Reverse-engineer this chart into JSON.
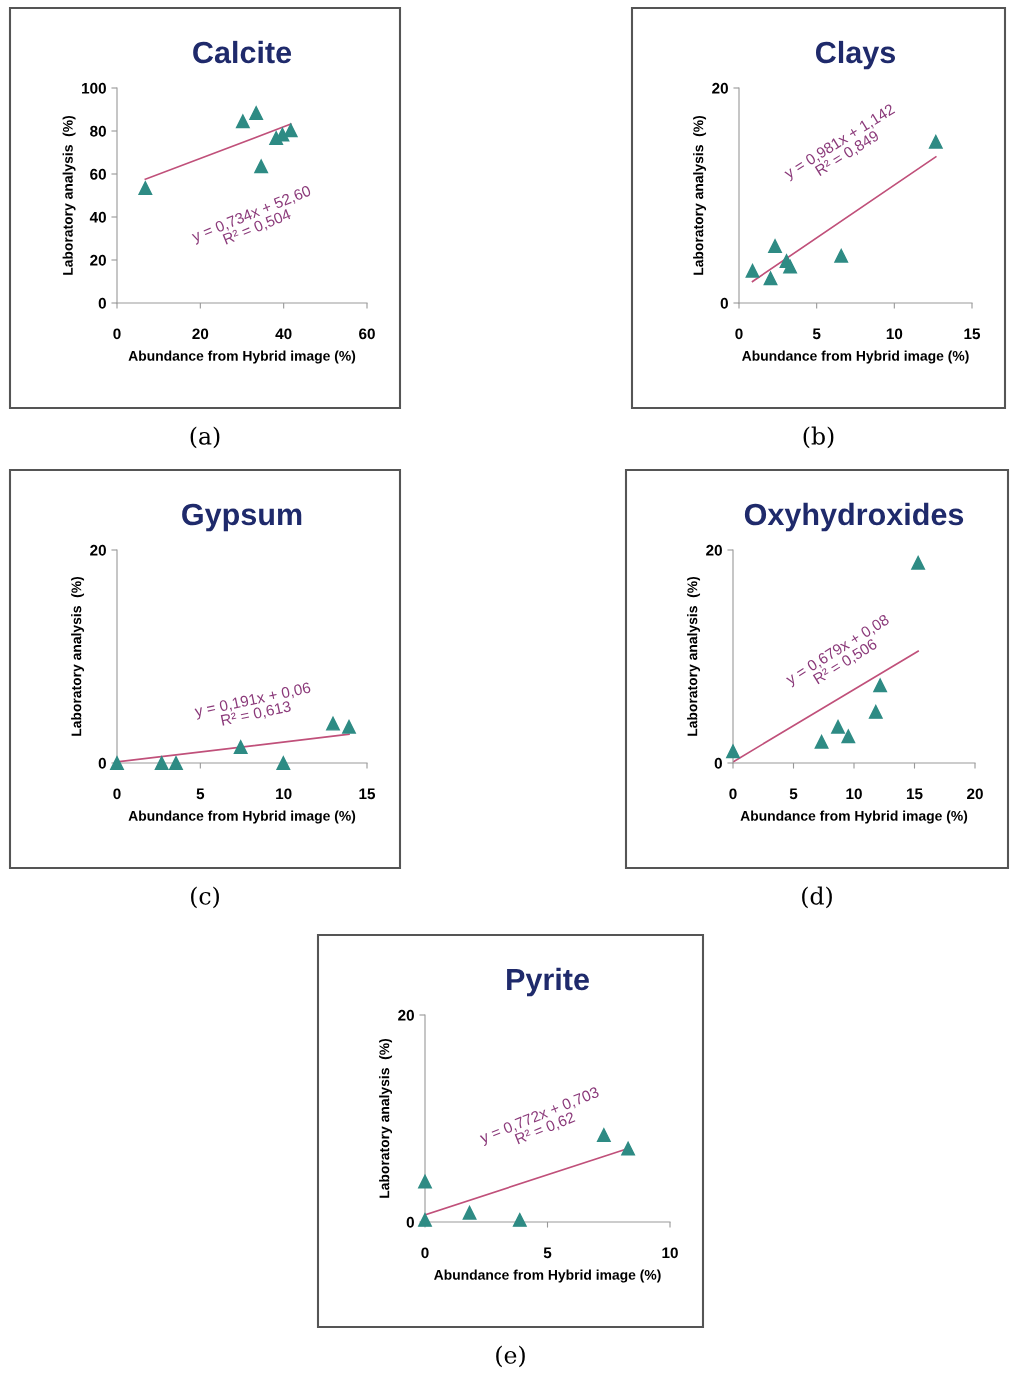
{
  "chart_data": [
    {
      "type": "scatter",
      "title": "Calcite",
      "xlabel": "Abundance from Hybrid image (%)",
      "ylabel": "Laboratory analysis  (%)",
      "xlim": [
        0,
        60
      ],
      "xticks": [
        0,
        20,
        40,
        60
      ],
      "ylim": [
        0,
        100
      ],
      "yticks": [
        0,
        20,
        40,
        60,
        80,
        100
      ],
      "grid": false,
      "series": [
        {
          "marker": "triangle",
          "color": "#2e8b84",
          "x": [
            6.8,
            30.2,
            33.4,
            34.6,
            38.2,
            39.7,
            41.7
          ],
          "values": [
            53.5,
            84.5,
            88.4,
            63.6,
            76.7,
            78.3,
            80.3
          ]
        },
        {
          "type": "line",
          "color": "#c0507a",
          "x": [
            6.8,
            41.7
          ],
          "values": [
            57.6,
            83.2
          ]
        }
      ],
      "annotations": [
        "y = 0,734x + 52,60",
        "R² = 0,504",
        "(a)"
      ]
    },
    {
      "type": "scatter",
      "title": "Clays",
      "xlabel": "Abundance from Hybrid image (%)",
      "ylabel": "Laboratory analysis  (%)",
      "xlim": [
        0,
        15
      ],
      "xticks": [
        0,
        5,
        10,
        15
      ],
      "ylim": [
        0,
        20
      ],
      "yticks": [
        0,
        20
      ],
      "grid": false,
      "series": [
        {
          "marker": "triangle",
          "color": "#2e8b84",
          "x": [
            0.87,
            2.03,
            2.32,
            3.06,
            3.29,
            6.58,
            12.67
          ],
          "values": [
            3.0,
            2.3,
            5.3,
            3.9,
            3.4,
            4.4,
            15.0
          ]
        },
        {
          "type": "line",
          "color": "#c0507a",
          "x": [
            0.87,
            12.67
          ],
          "values": [
            2.0,
            13.6
          ]
        }
      ],
      "annotations": [
        "y = 0,981x + 1,142",
        "R² = 0,849",
        "(b)"
      ]
    },
    {
      "type": "scatter",
      "title": "Gypsum",
      "xlabel": "Abundance from Hybrid image (%)",
      "ylabel": "Laboratory analysis  (%)",
      "xlim": [
        0,
        15
      ],
      "xticks": [
        0,
        5,
        10,
        15
      ],
      "ylim": [
        0,
        20
      ],
      "yticks": [
        0,
        20
      ],
      "grid": false,
      "series": [
        {
          "marker": "triangle",
          "color": "#2e8b84",
          "x": [
            0,
            2.68,
            3.54,
            7.42,
            9.98,
            12.96,
            13.92
          ],
          "values": [
            0,
            0,
            0,
            1.5,
            0,
            3.7,
            3.4
          ]
        },
        {
          "type": "line",
          "color": "#c0507a",
          "x": [
            0,
            13.92
          ],
          "values": [
            0.1,
            2.7
          ]
        }
      ],
      "annotations": [
        "y = 0,191x + 0,06",
        "R² = 0,613",
        "(c)"
      ]
    },
    {
      "type": "scatter",
      "title": "Oxyhydroxides",
      "xlabel": "Abundance from Hybrid image (%)",
      "ylabel": "Laboratory analysis  (%)",
      "xlim": [
        0,
        20
      ],
      "xticks": [
        0,
        5,
        10,
        15,
        20
      ],
      "ylim": [
        0,
        20
      ],
      "yticks": [
        0,
        20
      ],
      "grid": false,
      "series": [
        {
          "marker": "triangle",
          "color": "#2e8b84",
          "x": [
            0,
            7.32,
            8.68,
            9.53,
            11.8,
            12.16,
            15.3
          ],
          "values": [
            1.1,
            2.0,
            3.4,
            2.5,
            4.8,
            7.3,
            18.8
          ]
        },
        {
          "type": "line",
          "color": "#c0507a",
          "x": [
            0,
            15.3
          ],
          "values": [
            0.1,
            10.5
          ]
        }
      ],
      "annotations": [
        "y = 0,679x + 0,08",
        "R² = 0,506",
        "(d)"
      ]
    },
    {
      "type": "scatter",
      "title": "Pyrite",
      "xlabel": "Abundance from Hybrid image (%)",
      "ylabel": "Laboratory analysis  (%)",
      "xlim": [
        0,
        10
      ],
      "xticks": [
        0,
        5,
        10
      ],
      "ylim": [
        0,
        20
      ],
      "yticks": [
        0,
        20
      ],
      "grid": false,
      "series": [
        {
          "marker": "triangle",
          "color": "#2e8b84",
          "x": [
            0,
            0,
            1.82,
            3.87,
            7.3,
            8.29
          ],
          "values": [
            0.2,
            3.9,
            0.9,
            0.2,
            8.4,
            7.1
          ]
        },
        {
          "type": "line",
          "color": "#c0507a",
          "x": [
            0,
            8.29
          ],
          "values": [
            0.7,
            7.1
          ]
        }
      ],
      "annotations": [
        "y = 0,772x + 0,703",
        "R² = 0,62",
        "(e)"
      ]
    }
  ]
}
